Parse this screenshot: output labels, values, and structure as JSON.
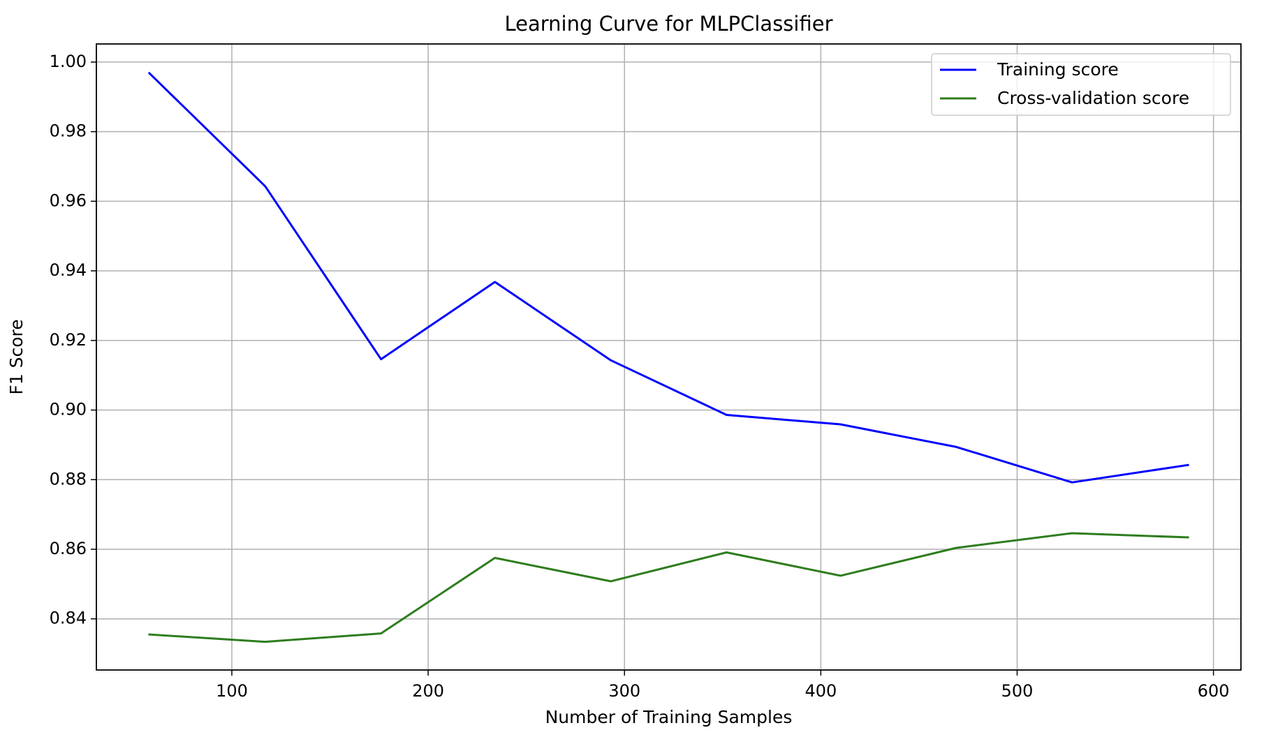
{
  "chart_data": {
    "type": "line",
    "title": "Learning Curve for MLPClassifier",
    "xlabel": "Number of Training Samples",
    "ylabel": "F1 Score",
    "xlim": [
      31,
      614
    ],
    "ylim": [
      0.8253,
      1.0052
    ],
    "xticks": [
      100,
      200,
      300,
      400,
      500,
      600
    ],
    "xtick_labels": [
      "100",
      "200",
      "300",
      "400",
      "500",
      "600"
    ],
    "yticks": [
      0.84,
      0.86,
      0.88,
      0.9,
      0.92,
      0.94,
      0.96,
      0.98,
      1.0
    ],
    "ytick_labels": [
      "0.84",
      "0.86",
      "0.88",
      "0.90",
      "0.92",
      "0.94",
      "0.96",
      "0.98",
      "1.00"
    ],
    "grid": true,
    "legend_position": "top-right",
    "x": [
      58,
      117,
      176,
      234,
      293,
      352,
      410,
      469,
      528,
      587
    ],
    "series": [
      {
        "name": "Training score",
        "color": "#0000ff",
        "values": [
          0.9968,
          0.9643,
          0.9146,
          0.9368,
          0.9143,
          0.8986,
          0.8959,
          0.8894,
          0.8792,
          0.8842
        ]
      },
      {
        "name": "Cross-validation score",
        "color": "#2e7d1e",
        "values": [
          0.8355,
          0.8334,
          0.8358,
          0.8575,
          0.8508,
          0.8591,
          0.8524,
          0.8604,
          0.8646,
          0.8634
        ]
      }
    ]
  }
}
